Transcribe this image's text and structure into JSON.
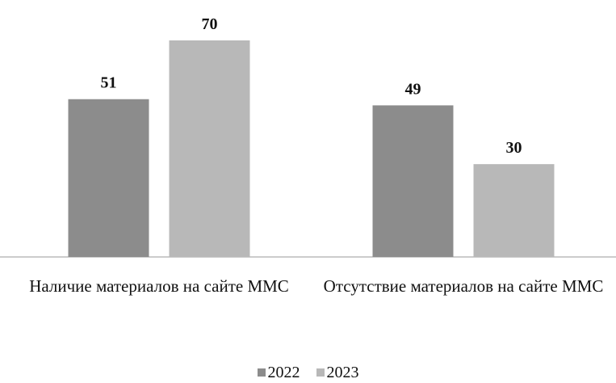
{
  "chart_data": {
    "type": "bar",
    "categories": [
      "Наличие материалов на сайте ММС",
      "Отсутствие материалов на сайте ММС"
    ],
    "series": [
      {
        "name": "2022",
        "color": "#8c8c8c",
        "values": [
          51,
          49
        ]
      },
      {
        "name": "2023",
        "color": "#b8b8b8",
        "values": [
          70,
          30
        ]
      }
    ],
    "legend": "bottom"
  }
}
